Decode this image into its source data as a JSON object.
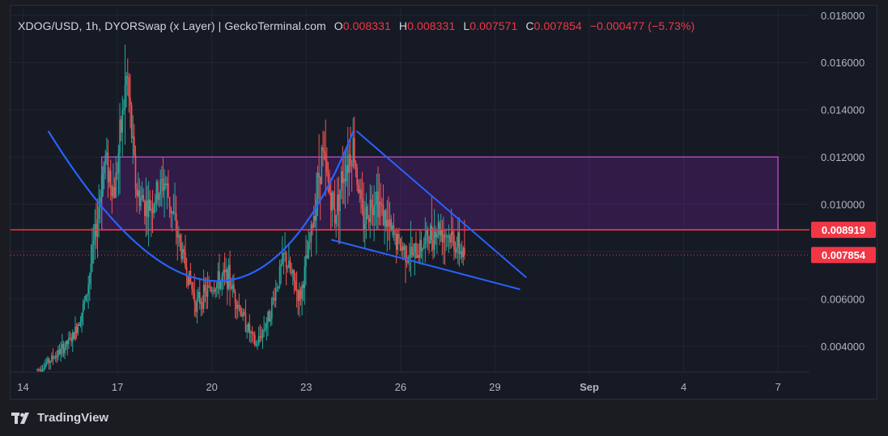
{
  "header": {
    "symbol": "XDOG/USD, 1h, DYORSwap (x Layer) | GeckoTerminal.com",
    "o_label": "O",
    "o_value": "0.008331",
    "h_label": "H",
    "h_value": "0.008331",
    "l_label": "L",
    "l_value": "0.007571",
    "c_label": "C",
    "c_value": "0.007854",
    "change": "−0.000477 (−5.73%)"
  },
  "branding": {
    "logo_text": "TradingView",
    "logo_icon": "tradingview-logo-icon"
  },
  "colors": {
    "up": "#26a69a",
    "down": "#ef5350",
    "trendline": "#2962ff",
    "zone_fill": "#7b1fa2",
    "zone_border": "#ab47bc",
    "resistance": "#f23645",
    "current_price": "#f23645",
    "grid": "#232632",
    "axis_text": "#b2b5be"
  },
  "chart_data": {
    "type": "candlestick",
    "pair": "XDOG/USD",
    "interval": "1h",
    "yaxis": {
      "ticks": [
        "0.004000",
        "0.006000",
        "0.008000",
        "0.010000",
        "0.012000",
        "0.014000",
        "0.016000",
        "0.018000"
      ],
      "ylim": [
        0.0029,
        0.0183
      ]
    },
    "xaxis": {
      "ticks": [
        "14",
        "17",
        "20",
        "23",
        "26",
        "29",
        "Sep",
        "4",
        "7"
      ],
      "tick_days": [
        14,
        17,
        20,
        23,
        26,
        29,
        32,
        35,
        38
      ],
      "xlim_days": [
        13.6,
        39.0
      ]
    },
    "price_labels": [
      {
        "label": "0.008919",
        "value": 0.008919
      },
      {
        "label": "0.007854",
        "value": 0.007854
      }
    ],
    "anchor_points": [
      {
        "x_day": 14.5,
        "y": 0.003
      },
      {
        "x_day": 15.2,
        "y": 0.0038
      },
      {
        "x_day": 15.6,
        "y": 0.0044
      },
      {
        "x_day": 16.0,
        "y": 0.006
      },
      {
        "x_day": 16.3,
        "y": 0.0088
      },
      {
        "x_day": 16.6,
        "y": 0.012
      },
      {
        "x_day": 16.9,
        "y": 0.0105
      },
      {
        "x_day": 17.3,
        "y": 0.0155
      },
      {
        "x_day": 17.6,
        "y": 0.0105
      },
      {
        "x_day": 18.0,
        "y": 0.0098
      },
      {
        "x_day": 18.5,
        "y": 0.011
      },
      {
        "x_day": 19.0,
        "y": 0.0082
      },
      {
        "x_day": 19.5,
        "y": 0.0058
      },
      {
        "x_day": 20.0,
        "y": 0.0065
      },
      {
        "x_day": 20.5,
        "y": 0.007
      },
      {
        "x_day": 21.0,
        "y": 0.0052
      },
      {
        "x_day": 21.4,
        "y": 0.004
      },
      {
        "x_day": 21.8,
        "y": 0.0052
      },
      {
        "x_day": 22.3,
        "y": 0.0078
      },
      {
        "x_day": 22.8,
        "y": 0.006
      },
      {
        "x_day": 23.1,
        "y": 0.0082
      },
      {
        "x_day": 23.5,
        "y": 0.0122
      },
      {
        "x_day": 23.9,
        "y": 0.0095
      },
      {
        "x_day": 24.2,
        "y": 0.0115
      },
      {
        "x_day": 24.5,
        "y": 0.0125
      },
      {
        "x_day": 24.8,
        "y": 0.0092
      },
      {
        "x_day": 25.2,
        "y": 0.0105
      },
      {
        "x_day": 25.6,
        "y": 0.009
      },
      {
        "x_day": 26.0,
        "y": 0.0082
      },
      {
        "x_day": 26.4,
        "y": 0.0078
      },
      {
        "x_day": 26.8,
        "y": 0.0085
      },
      {
        "x_day": 27.2,
        "y": 0.009
      },
      {
        "x_day": 27.6,
        "y": 0.0086
      },
      {
        "x_day": 28.0,
        "y": 0.0079
      }
    ],
    "zone": {
      "x_start_day": 16.5,
      "x_end_day": 38.0,
      "y_low": 0.008919,
      "y_high": 0.012
    },
    "resistance_line": {
      "y": 0.008919
    },
    "current_price_line": {
      "y": 0.007854
    },
    "cup_curve": [
      {
        "x_day": 14.8,
        "y": 0.0131
      },
      {
        "x_day": 20.7,
        "y": 0.0004
      },
      {
        "x_day": 24.5,
        "y": 0.0131
      }
    ],
    "wedge_upper": [
      {
        "x_day": 24.6,
        "y": 0.0131
      },
      {
        "x_day": 30.0,
        "y": 0.0069
      }
    ],
    "wedge_lower": [
      {
        "x_day": 23.8,
        "y": 0.0085
      },
      {
        "x_day": 29.8,
        "y": 0.0064
      }
    ]
  }
}
